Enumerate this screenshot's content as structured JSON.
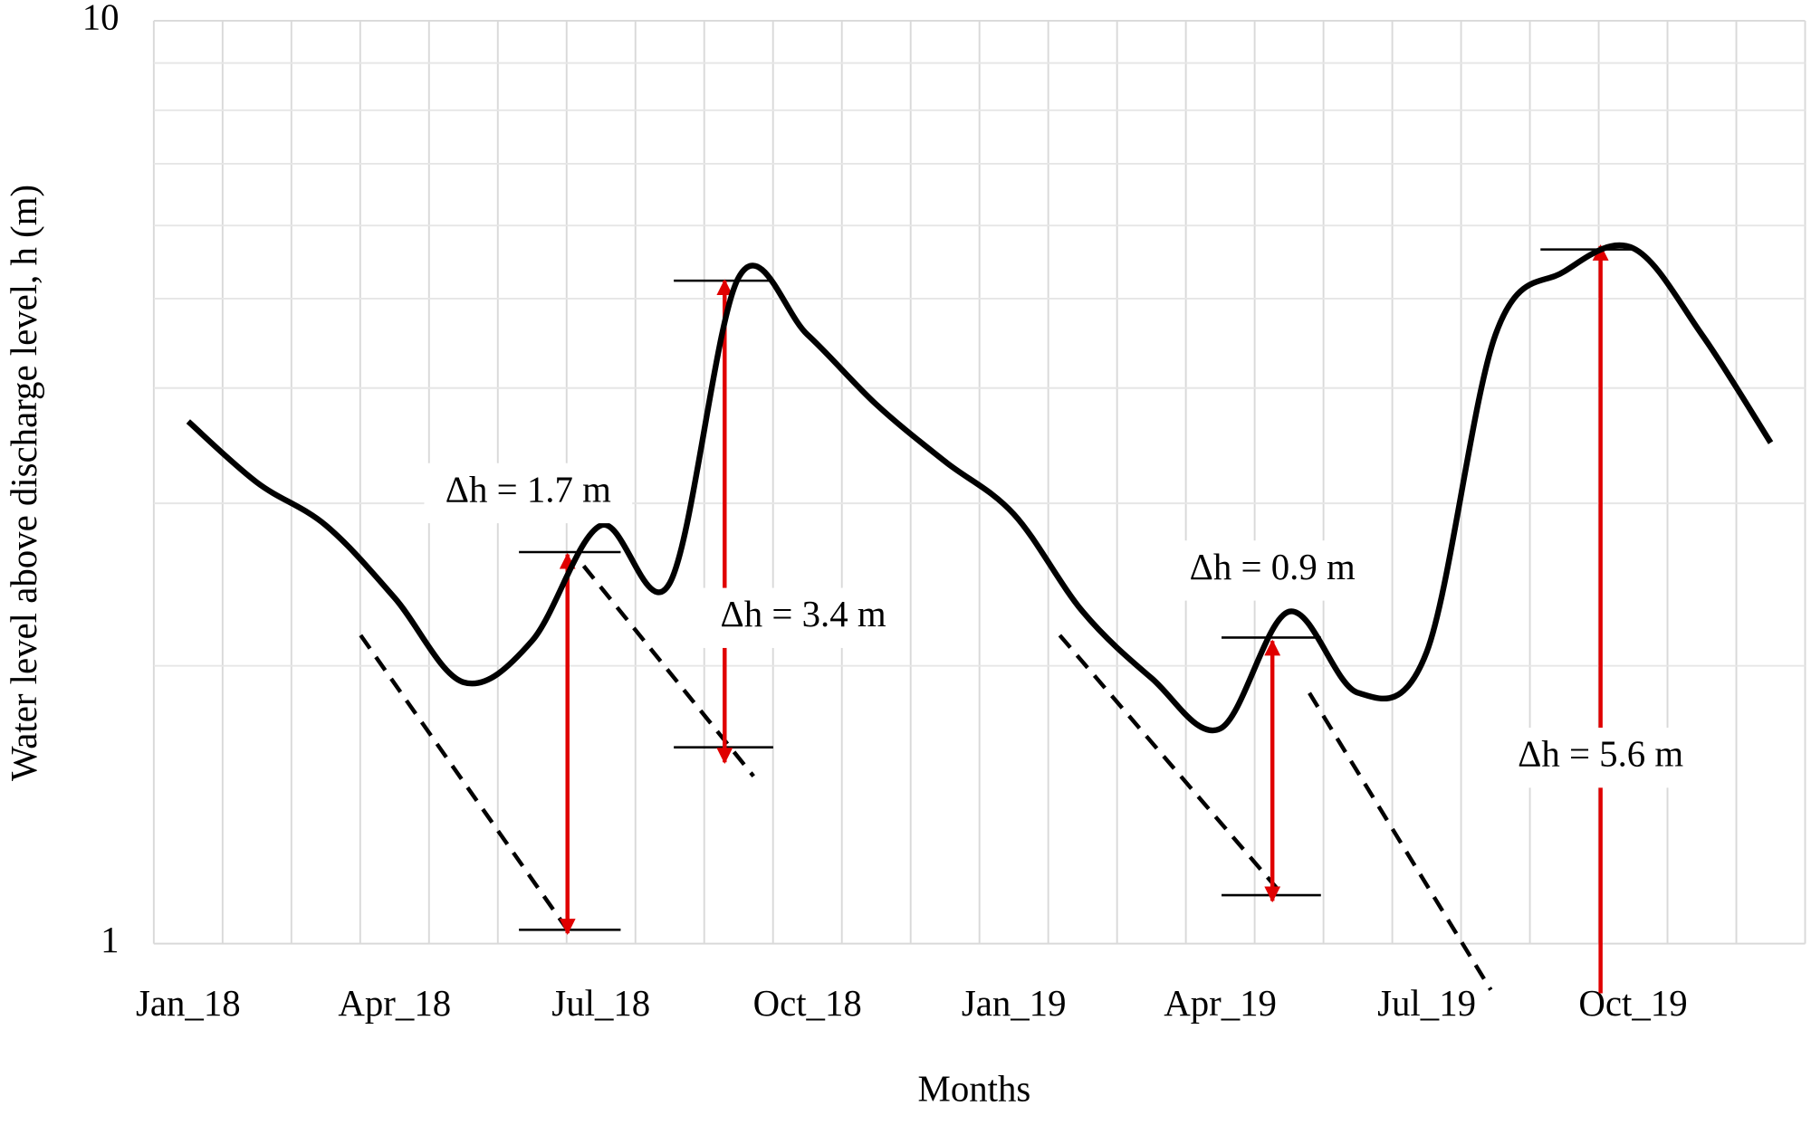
{
  "chart_data": {
    "type": "line",
    "x_label": "Months",
    "y_label": "Water level above discharge level, h (m)",
    "categories": [
      "Jan_18",
      null,
      null,
      "Apr_18",
      null,
      null,
      "Jul_18",
      null,
      null,
      "Oct_18",
      null,
      null,
      "Jan_19",
      null,
      null,
      "Apr_19",
      null,
      null,
      "Jul_19",
      null,
      null,
      "Oct_19",
      null,
      null
    ],
    "series": [
      {
        "name": "Water level",
        "color": "#000000",
        "values": [
          3.68,
          3.16,
          2.84,
          2.37,
          1.92,
          2.13,
          2.84,
          2.46,
          5.27,
          4.57,
          3.84,
          3.33,
          2.92,
          2.29,
          1.94,
          1.71,
          2.29,
          1.87,
          2.07,
          4.57,
          5.35,
          5.67,
          4.57,
          3.49
        ]
      }
    ],
    "log_y": true,
    "ylim": [
      1,
      10
    ],
    "yticks": [
      1,
      10
    ],
    "y_minor_gridlines": [
      2,
      3,
      4,
      5,
      6,
      7,
      8,
      9
    ],
    "grid": true,
    "annotations": [
      "Δh = 1.7 m",
      "Δh = 3.4 m",
      "Δh = 0.9 m",
      "Δh = 5.6 m"
    ],
    "annotation_color": "#e00000"
  }
}
